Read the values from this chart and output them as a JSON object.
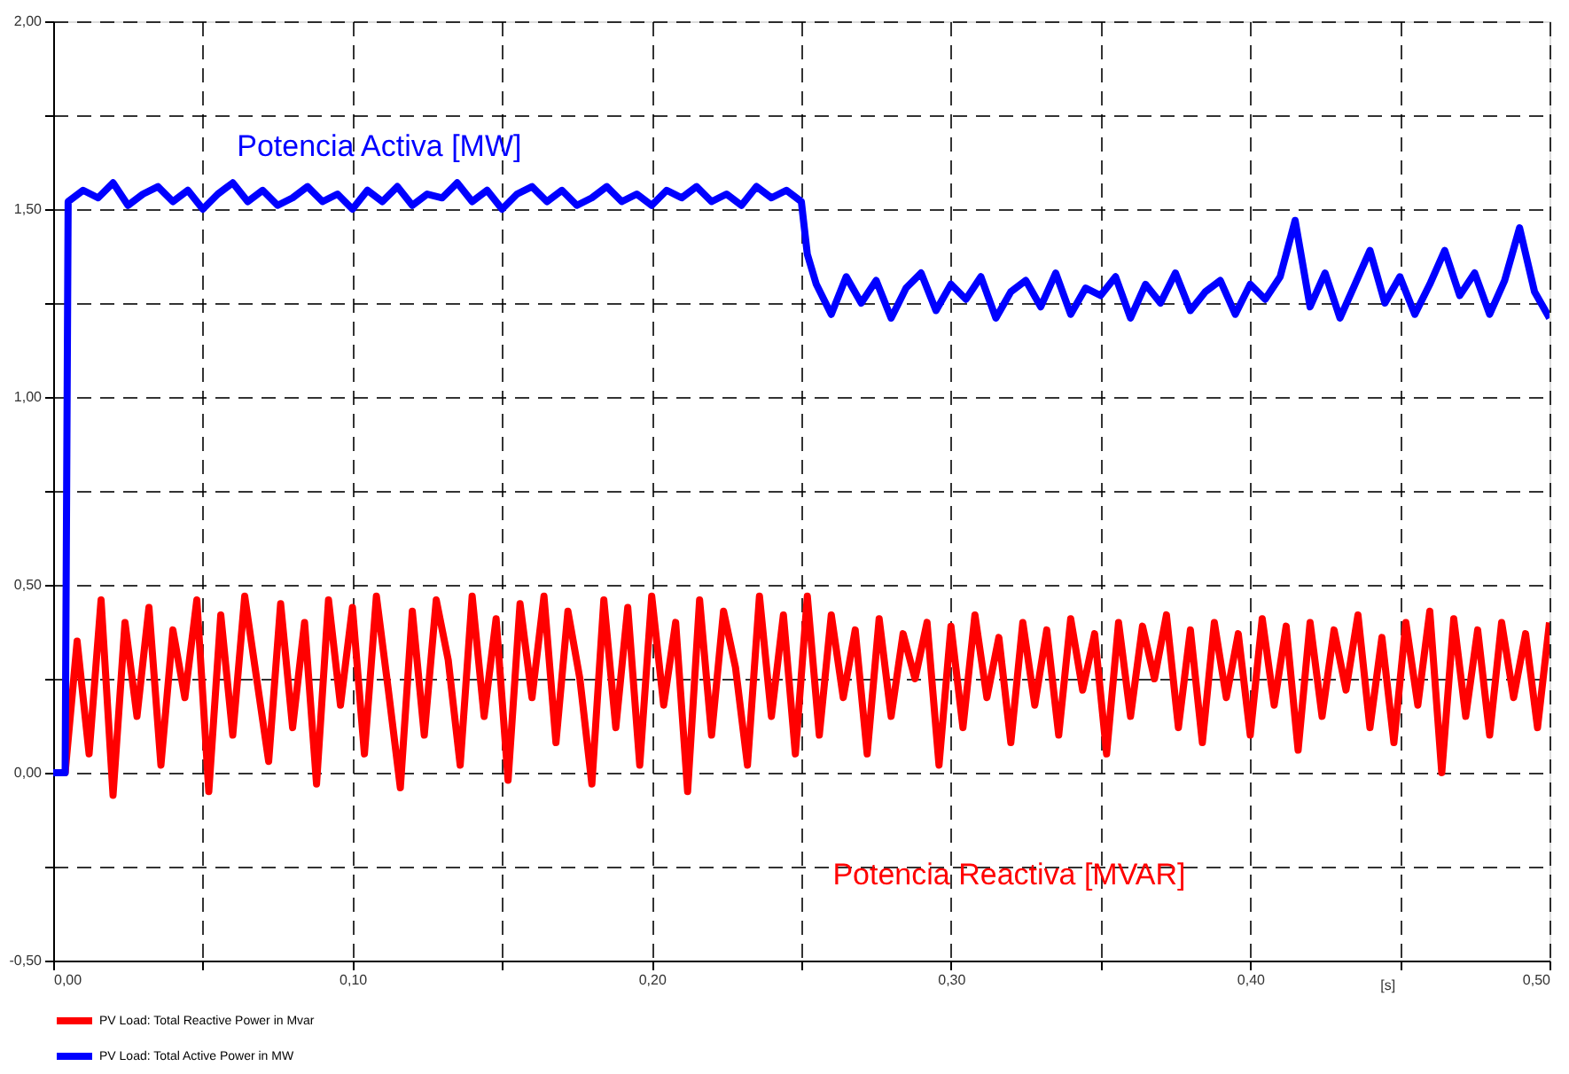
{
  "chart_data": {
    "type": "line",
    "xlabel": "[s]",
    "xlim": [
      0,
      0.5
    ],
    "ylim": [
      -0.5,
      2.0
    ],
    "xticks": [
      {
        "value": 0,
        "label": "0,00"
      },
      {
        "value": 0.05,
        "label": null
      },
      {
        "value": 0.1,
        "label": "0,10"
      },
      {
        "value": 0.15,
        "label": null
      },
      {
        "value": 0.2,
        "label": "0,20"
      },
      {
        "value": 0.25,
        "label": null
      },
      {
        "value": 0.3,
        "label": "0,30"
      },
      {
        "value": 0.35,
        "label": null
      },
      {
        "value": 0.4,
        "label": "0,40"
      },
      {
        "value": 0.45,
        "label": null
      },
      {
        "value": 0.5,
        "label": "0,50"
      }
    ],
    "yticks": [
      {
        "value": -0.5,
        "label": "-0,50"
      },
      {
        "value": -0.25,
        "label": null
      },
      {
        "value": 0,
        "label": "0,00"
      },
      {
        "value": 0.25,
        "label": null
      },
      {
        "value": 0.5,
        "label": "0,50"
      },
      {
        "value": 0.75,
        "label": null
      },
      {
        "value": 1.0,
        "label": "1,00"
      },
      {
        "value": 1.25,
        "label": null
      },
      {
        "value": 1.5,
        "label": "1,50"
      },
      {
        "value": 1.75,
        "label": null
      },
      {
        "value": 2.0,
        "label": "2,00"
      }
    ],
    "grid": true,
    "legend": "bottom",
    "line_style": "solid",
    "annotations": [
      "Potencia Reactiva [MVAR]",
      "Potencia Activa [MW]"
    ],
    "series": [
      {
        "name": "PV Load: Total Reactive Power in Mvar",
        "color": "#ff0000",
        "x": [
          0,
          0.004,
          0.008,
          0.012,
          0.016,
          0.02,
          0.024,
          0.028,
          0.032,
          0.036,
          0.04,
          0.044,
          0.048,
          0.052,
          0.056,
          0.06,
          0.064,
          0.068,
          0.072,
          0.076,
          0.08,
          0.084,
          0.088,
          0.092,
          0.096,
          0.1,
          0.104,
          0.108,
          0.112,
          0.116,
          0.12,
          0.124,
          0.128,
          0.132,
          0.136,
          0.14,
          0.144,
          0.148,
          0.152,
          0.156,
          0.16,
          0.164,
          0.168,
          0.172,
          0.176,
          0.18,
          0.184,
          0.188,
          0.192,
          0.196,
          0.2,
          0.204,
          0.208,
          0.212,
          0.216,
          0.22,
          0.224,
          0.228,
          0.232,
          0.236,
          0.24,
          0.244,
          0.248,
          0.252,
          0.256,
          0.26,
          0.264,
          0.268,
          0.272,
          0.276,
          0.28,
          0.284,
          0.288,
          0.292,
          0.296,
          0.3,
          0.304,
          0.308,
          0.312,
          0.316,
          0.32,
          0.324,
          0.328,
          0.332,
          0.336,
          0.34,
          0.344,
          0.348,
          0.352,
          0.356,
          0.36,
          0.364,
          0.368,
          0.372,
          0.376,
          0.38,
          0.384,
          0.388,
          0.392,
          0.396,
          0.4,
          0.404,
          0.408,
          0.412,
          0.416,
          0.42,
          0.424,
          0.428,
          0.432,
          0.436,
          0.44,
          0.444,
          0.448,
          0.452,
          0.456,
          0.46,
          0.464,
          0.468,
          0.472,
          0.476,
          0.48,
          0.484,
          0.488,
          0.492,
          0.496,
          0.5
        ],
        "values": [
          0,
          0,
          0.35,
          0.05,
          0.46,
          -0.06,
          0.4,
          0.15,
          0.44,
          0.02,
          0.38,
          0.2,
          0.46,
          -0.05,
          0.42,
          0.1,
          0.47,
          0.25,
          0.03,
          0.45,
          0.12,
          0.4,
          -0.03,
          0.46,
          0.18,
          0.44,
          0.05,
          0.47,
          0.22,
          -0.04,
          0.43,
          0.1,
          0.46,
          0.3,
          0.02,
          0.47,
          0.15,
          0.41,
          -0.02,
          0.45,
          0.2,
          0.47,
          0.08,
          0.43,
          0.25,
          -0.03,
          0.46,
          0.12,
          0.44,
          0.02,
          0.47,
          0.18,
          0.4,
          -0.05,
          0.46,
          0.1,
          0.43,
          0.28,
          0.02,
          0.47,
          0.15,
          0.42,
          0.05,
          0.47,
          0.1,
          0.42,
          0.2,
          0.38,
          0.05,
          0.41,
          0.15,
          0.37,
          0.25,
          0.4,
          0.02,
          0.39,
          0.12,
          0.42,
          0.2,
          0.36,
          0.08,
          0.4,
          0.18,
          0.38,
          0.1,
          0.41,
          0.22,
          0.37,
          0.05,
          0.4,
          0.15,
          0.39,
          0.25,
          0.42,
          0.12,
          0.38,
          0.08,
          0.4,
          0.2,
          0.37,
          0.1,
          0.41,
          0.18,
          0.39,
          0.06,
          0.4,
          0.15,
          0.38,
          0.22,
          0.42,
          0.12,
          0.36,
          0.08,
          0.4,
          0.18,
          0.43,
          0.0,
          0.41,
          0.15,
          0.38,
          0.1,
          0.4,
          0.2,
          0.37,
          0.12,
          0.4
        ]
      },
      {
        "name": "PV Load: Total Active Power in MW",
        "color": "#0000ff",
        "x": [
          0,
          0.004,
          0.005,
          0.01,
          0.015,
          0.02,
          0.025,
          0.03,
          0.035,
          0.04,
          0.045,
          0.05,
          0.055,
          0.06,
          0.065,
          0.07,
          0.075,
          0.08,
          0.085,
          0.09,
          0.095,
          0.1,
          0.105,
          0.11,
          0.115,
          0.12,
          0.125,
          0.13,
          0.135,
          0.14,
          0.145,
          0.15,
          0.155,
          0.16,
          0.165,
          0.17,
          0.175,
          0.18,
          0.185,
          0.19,
          0.195,
          0.2,
          0.205,
          0.21,
          0.215,
          0.22,
          0.225,
          0.23,
          0.235,
          0.24,
          0.245,
          0.25,
          0.252,
          0.255,
          0.26,
          0.265,
          0.27,
          0.275,
          0.28,
          0.285,
          0.29,
          0.295,
          0.3,
          0.305,
          0.31,
          0.315,
          0.32,
          0.325,
          0.33,
          0.335,
          0.34,
          0.345,
          0.35,
          0.355,
          0.36,
          0.365,
          0.37,
          0.375,
          0.38,
          0.385,
          0.39,
          0.395,
          0.4,
          0.405,
          0.41,
          0.415,
          0.42,
          0.425,
          0.43,
          0.435,
          0.44,
          0.445,
          0.45,
          0.455,
          0.46,
          0.465,
          0.47,
          0.475,
          0.48,
          0.485,
          0.49,
          0.495,
          0.5
        ],
        "values": [
          0,
          0,
          1.52,
          1.55,
          1.53,
          1.57,
          1.51,
          1.54,
          1.56,
          1.52,
          1.55,
          1.5,
          1.54,
          1.57,
          1.52,
          1.55,
          1.51,
          1.53,
          1.56,
          1.52,
          1.54,
          1.5,
          1.55,
          1.52,
          1.56,
          1.51,
          1.54,
          1.53,
          1.57,
          1.52,
          1.55,
          1.5,
          1.54,
          1.56,
          1.52,
          1.55,
          1.51,
          1.53,
          1.56,
          1.52,
          1.54,
          1.51,
          1.55,
          1.53,
          1.56,
          1.52,
          1.54,
          1.51,
          1.56,
          1.53,
          1.55,
          1.52,
          1.38,
          1.3,
          1.22,
          1.32,
          1.25,
          1.31,
          1.21,
          1.29,
          1.33,
          1.23,
          1.3,
          1.26,
          1.32,
          1.21,
          1.28,
          1.31,
          1.24,
          1.33,
          1.22,
          1.29,
          1.27,
          1.32,
          1.21,
          1.3,
          1.25,
          1.33,
          1.23,
          1.28,
          1.31,
          1.22,
          1.3,
          1.26,
          1.32,
          1.47,
          1.24,
          1.33,
          1.21,
          1.3,
          1.39,
          1.25,
          1.32,
          1.22,
          1.3,
          1.39,
          1.27,
          1.33,
          1.22,
          1.31,
          1.45,
          1.28,
          1.21
        ]
      }
    ]
  }
}
